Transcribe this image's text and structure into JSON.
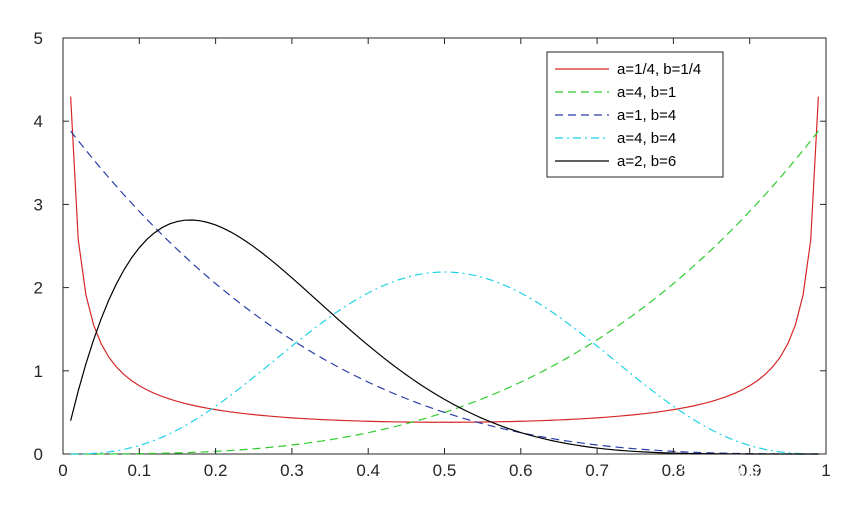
{
  "chart_data": {
    "type": "line",
    "title": "",
    "xlabel": "",
    "ylabel": "",
    "xlim": [
      0,
      1
    ],
    "ylim": [
      0,
      5
    ],
    "xticks": [
      0,
      0.1,
      0.2,
      0.3,
      0.4,
      0.5,
      0.6,
      0.7,
      0.8,
      0.9,
      1
    ],
    "xtick_labels": [
      "0",
      "0.1",
      "0.2",
      "0.3",
      "0.4",
      "0.5",
      "0.6",
      "0.7",
      "0.8",
      "0.9",
      "1"
    ],
    "yticks": [
      0,
      1,
      2,
      3,
      4,
      5
    ],
    "ytick_labels": [
      "0",
      "1",
      "2",
      "3",
      "4",
      "5"
    ],
    "grid": false,
    "legend_position": "top-right",
    "x_sample_start": 0.01,
    "x_sample_end": 0.99,
    "x_sample_step": 0.01,
    "series": [
      {
        "name": "a=1/4, b=1/4",
        "a": 0.25,
        "b": 0.25,
        "color": "#d62728",
        "dash": ""
      },
      {
        "name": "a=4, b=1",
        "a": 4,
        "b": 1,
        "color": "#2ecc2e",
        "dash": "8,5"
      },
      {
        "name": "a=1, b=4",
        "a": 1,
        "b": 4,
        "color": "#2b3fa8",
        "dash": "8,5"
      },
      {
        "name": "a=4, b=4",
        "a": 4,
        "b": 4,
        "color": "#1ed2e6",
        "dash": "8,4,2,4"
      },
      {
        "name": "a=2, b=6",
        "a": 2,
        "b": 6,
        "color": "#000000",
        "dash": ""
      }
    ]
  },
  "watermark": "知乎 @matpij"
}
